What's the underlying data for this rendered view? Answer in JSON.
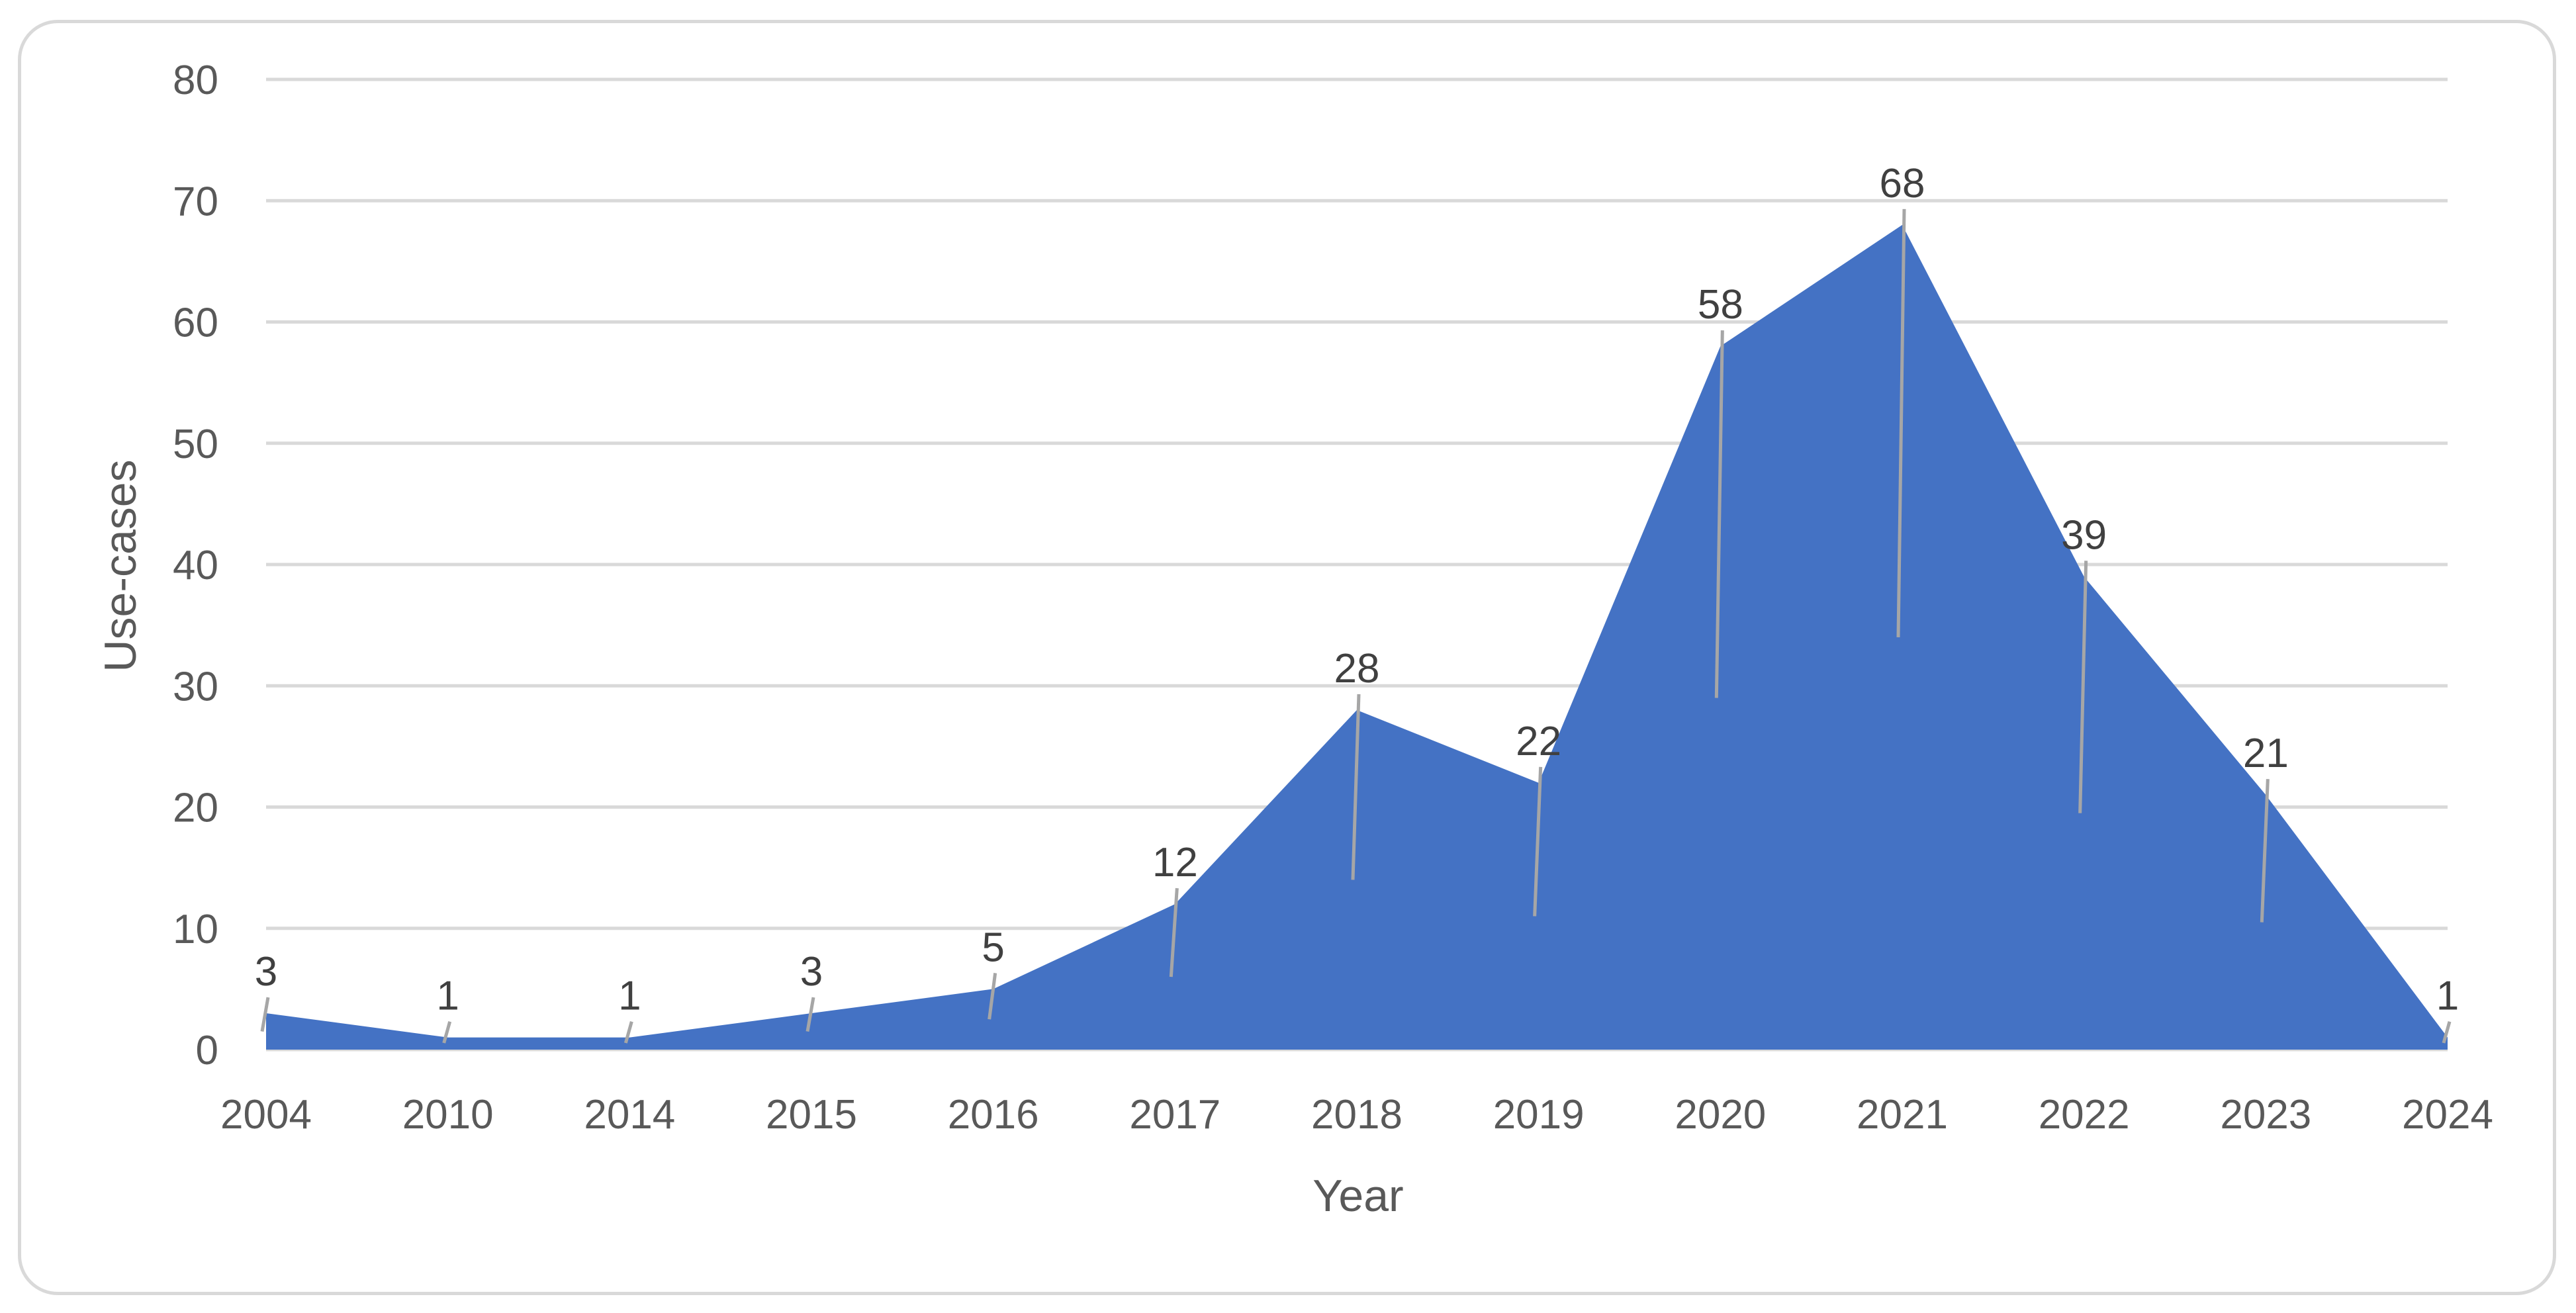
{
  "chart_data": {
    "type": "area",
    "categories": [
      "2004",
      "2010",
      "2014",
      "2015",
      "2016",
      "2017",
      "2018",
      "2019",
      "2020",
      "2021",
      "2022",
      "2023",
      "2024"
    ],
    "values": [
      3,
      1,
      1,
      3,
      5,
      12,
      28,
      22,
      58,
      68,
      39,
      21,
      1
    ],
    "data_labels": [
      "3",
      "1",
      "1",
      "3",
      "5",
      "12",
      "28",
      "22",
      "58",
      "68",
      "39",
      "21",
      "1"
    ],
    "yticks": [
      "0",
      "10",
      "20",
      "30",
      "40",
      "50",
      "60",
      "70",
      "80"
    ],
    "ylim": [
      0,
      80
    ],
    "title": "",
    "xlabel": "Year",
    "ylabel": "Use-cases",
    "grid": true,
    "legend": "none",
    "colors": {
      "area": "#4472c4",
      "grid": "#d9d9d9",
      "text": "#595959",
      "leader": "#a6a6a6"
    }
  }
}
